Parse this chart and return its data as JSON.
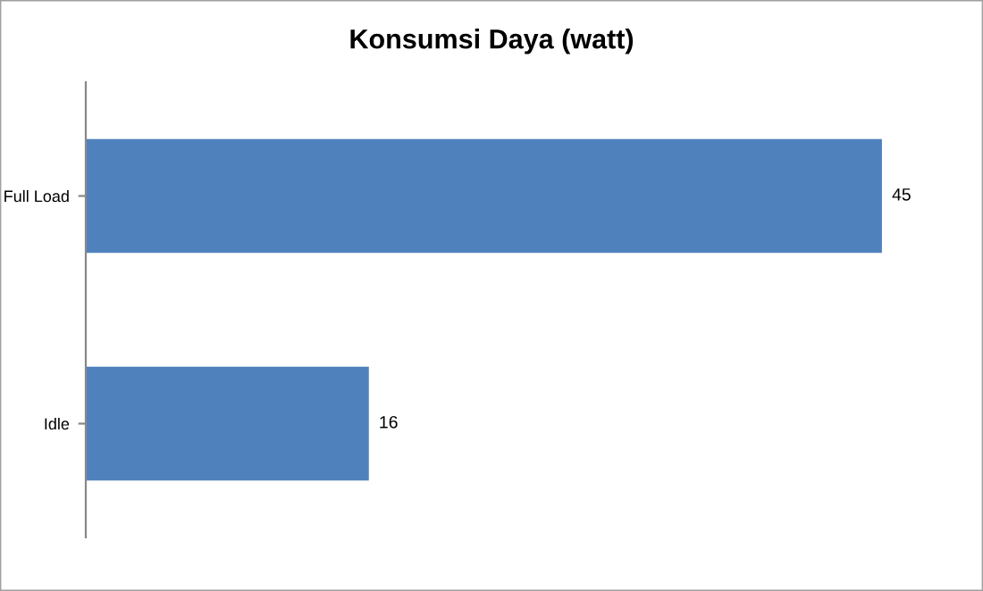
{
  "chart_data": {
    "type": "bar",
    "orientation": "horizontal",
    "title": "Konsumsi Daya (watt)",
    "categories": [
      "Full Load",
      "Idle"
    ],
    "values": [
      45,
      16
    ],
    "color": "#4f81bd",
    "tick_labels": "y",
    "data_labels": true,
    "grid": false,
    "legend": false
  }
}
